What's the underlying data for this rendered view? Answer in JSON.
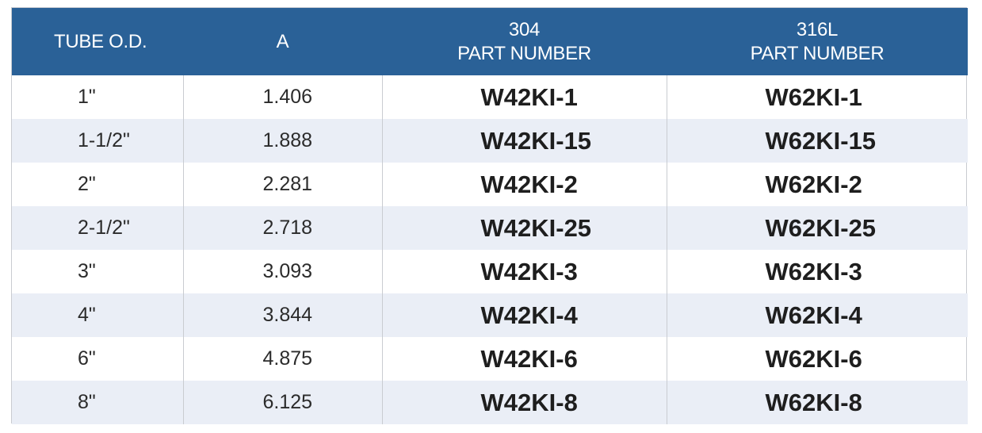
{
  "table": {
    "headers": {
      "tube_od": "TUBE O.D.",
      "a": "A",
      "col304_line1": "304",
      "col304_line2": "PART NUMBER",
      "col316_line1": "316L",
      "col316_line2": "PART NUMBER"
    },
    "rows": [
      {
        "tube_od": "1\"",
        "a": "1.406",
        "pn304": "W42KI-1",
        "pn316l": "W62KI-1"
      },
      {
        "tube_od": "1-1/2\"",
        "a": "1.888",
        "pn304": "W42KI-15",
        "pn316l": "W62KI-15"
      },
      {
        "tube_od": "2\"",
        "a": "2.281",
        "pn304": "W42KI-2",
        "pn316l": "W62KI-2"
      },
      {
        "tube_od": "2-1/2\"",
        "a": "2.718",
        "pn304": "W42KI-25",
        "pn316l": "W62KI-25"
      },
      {
        "tube_od": "3\"",
        "a": "3.093",
        "pn304": "W42KI-3",
        "pn316l": "W62KI-3"
      },
      {
        "tube_od": "4\"",
        "a": "3.844",
        "pn304": "W42KI-4",
        "pn316l": "W62KI-4"
      },
      {
        "tube_od": "6\"",
        "a": "4.875",
        "pn304": "W42KI-6",
        "pn316l": "W62KI-6"
      },
      {
        "tube_od": "8\"",
        "a": "6.125",
        "pn304": "W42KI-8",
        "pn316l": "W62KI-8"
      }
    ]
  },
  "colors": {
    "header_bg": "#2a6197",
    "header_text": "#ffffff",
    "alt_row_bg": "#eaeef6",
    "border": "#c9ccd1"
  }
}
